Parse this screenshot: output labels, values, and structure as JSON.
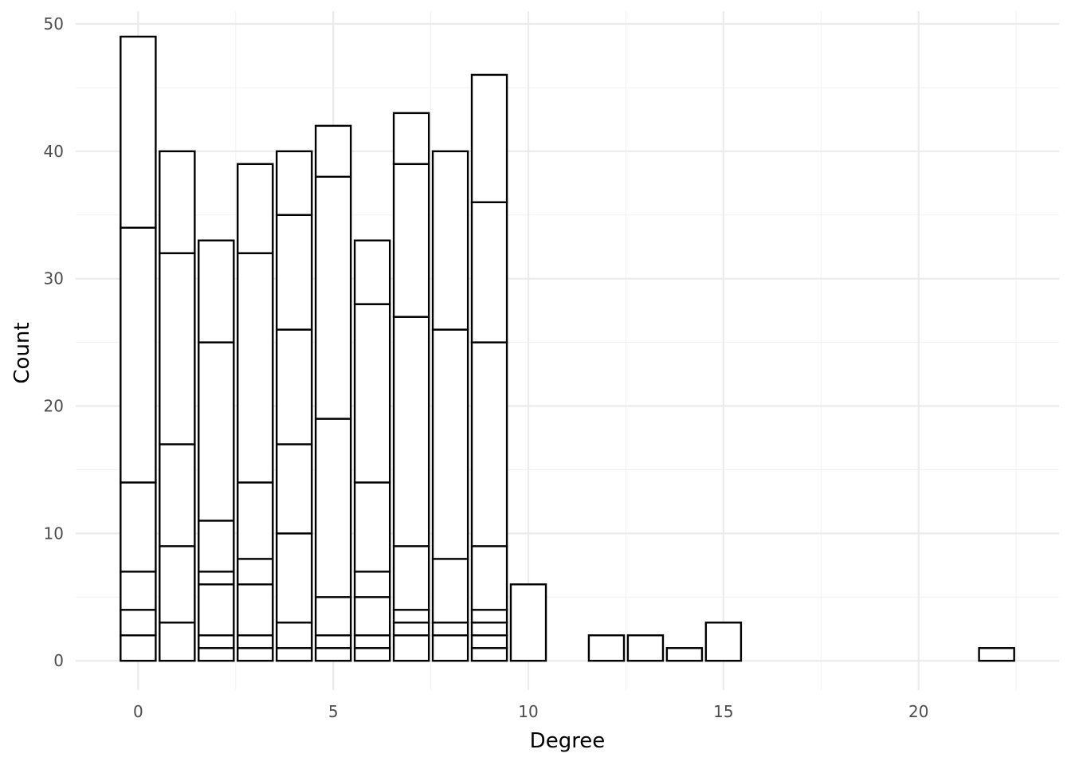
{
  "chart_data": {
    "type": "bar",
    "subtype": "stacked-histogram",
    "title": "",
    "xlabel": "Degree",
    "ylabel": "Count",
    "xlim": [
      -1.6,
      23.6
    ],
    "ylim": [
      -2.3,
      51
    ],
    "x_ticks": [
      0,
      5,
      10,
      15,
      20
    ],
    "y_ticks": [
      0,
      10,
      20,
      30,
      40,
      50
    ],
    "grid": true,
    "legend": "none",
    "colors": {
      "bar_fill": "#ffffff",
      "bar_stroke": "#000000",
      "grid_major": "#ebebeb",
      "grid_minor": "#f2f2f2",
      "tick_text": "#4d4d4d"
    },
    "bars": [
      {
        "x": 0,
        "cumulative": [
          2,
          4,
          7,
          14,
          34,
          49
        ]
      },
      {
        "x": 1,
        "cumulative": [
          3,
          9,
          17,
          32,
          40
        ]
      },
      {
        "x": 2,
        "cumulative": [
          1,
          2,
          6,
          7,
          11,
          25,
          33
        ]
      },
      {
        "x": 3,
        "cumulative": [
          1,
          2,
          6,
          8,
          14,
          32,
          39
        ]
      },
      {
        "x": 4,
        "cumulative": [
          1,
          3,
          10,
          17,
          26,
          35,
          40
        ]
      },
      {
        "x": 5,
        "cumulative": [
          1,
          2,
          5,
          19,
          38,
          42
        ]
      },
      {
        "x": 6,
        "cumulative": [
          1,
          2,
          5,
          7,
          14,
          28,
          33
        ]
      },
      {
        "x": 7,
        "cumulative": [
          2,
          3,
          4,
          9,
          27,
          39,
          43
        ]
      },
      {
        "x": 8,
        "cumulative": [
          2,
          3,
          8,
          26,
          40
        ]
      },
      {
        "x": 9,
        "cumulative": [
          1,
          2,
          3,
          4,
          9,
          25,
          36,
          46
        ]
      },
      {
        "x": 10,
        "cumulative": [
          6
        ]
      },
      {
        "x": 12,
        "cumulative": [
          2
        ]
      },
      {
        "x": 13,
        "cumulative": [
          2
        ]
      },
      {
        "x": 14,
        "cumulative": [
          1
        ]
      },
      {
        "x": 15,
        "cumulative": [
          3
        ]
      },
      {
        "x": 22,
        "cumulative": [
          1
        ]
      }
    ]
  }
}
